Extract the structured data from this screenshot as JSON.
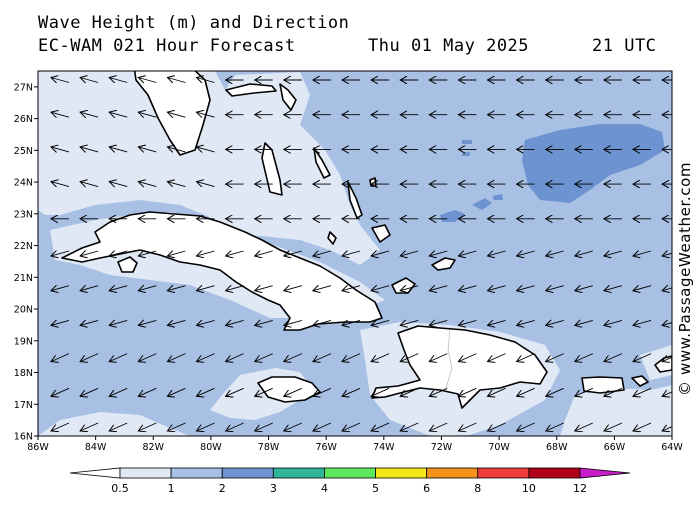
{
  "title": {
    "line1": "Wave Height (m) and Direction",
    "line2": "EC-WAM 021 Hour Forecast",
    "date": "Thu 01 May 2025",
    "time": "21 UTC"
  },
  "credit": "© www.PassageWeather.com",
  "map": {
    "lon_range": [
      -86,
      -64
    ],
    "lat_range": [
      16,
      27.5
    ],
    "lon_labels": [
      "86W",
      "84W",
      "82W",
      "80W",
      "78W",
      "76W",
      "74W",
      "72W",
      "70W",
      "68W",
      "66W",
      "64W"
    ],
    "lat_labels": [
      "16N",
      "17N",
      "18N",
      "19N",
      "20N",
      "21N",
      "22N",
      "23N",
      "24N",
      "25N",
      "26N",
      "27N"
    ],
    "colors": {
      "sea_1_2": "#a7c0e3",
      "sea_05_1": "#e0e8f6",
      "sea_2_3": "#6d93d0",
      "land": "#ffffff",
      "coast": "#000000"
    },
    "arrow_direction": "toward west-southwest (trade-wind swell)"
  },
  "colorbar": {
    "labels": [
      "0.5",
      "1",
      "2",
      "3",
      "4",
      "5",
      "6",
      "8",
      "10",
      "12"
    ],
    "colors": [
      "#e0e8f6",
      "#a7c0e3",
      "#6d93d0",
      "#2fb59a",
      "#5ee85e",
      "#f5e61a",
      "#f5921a",
      "#ef3a3a",
      "#b0001a",
      "#c81ec8"
    ]
  }
}
